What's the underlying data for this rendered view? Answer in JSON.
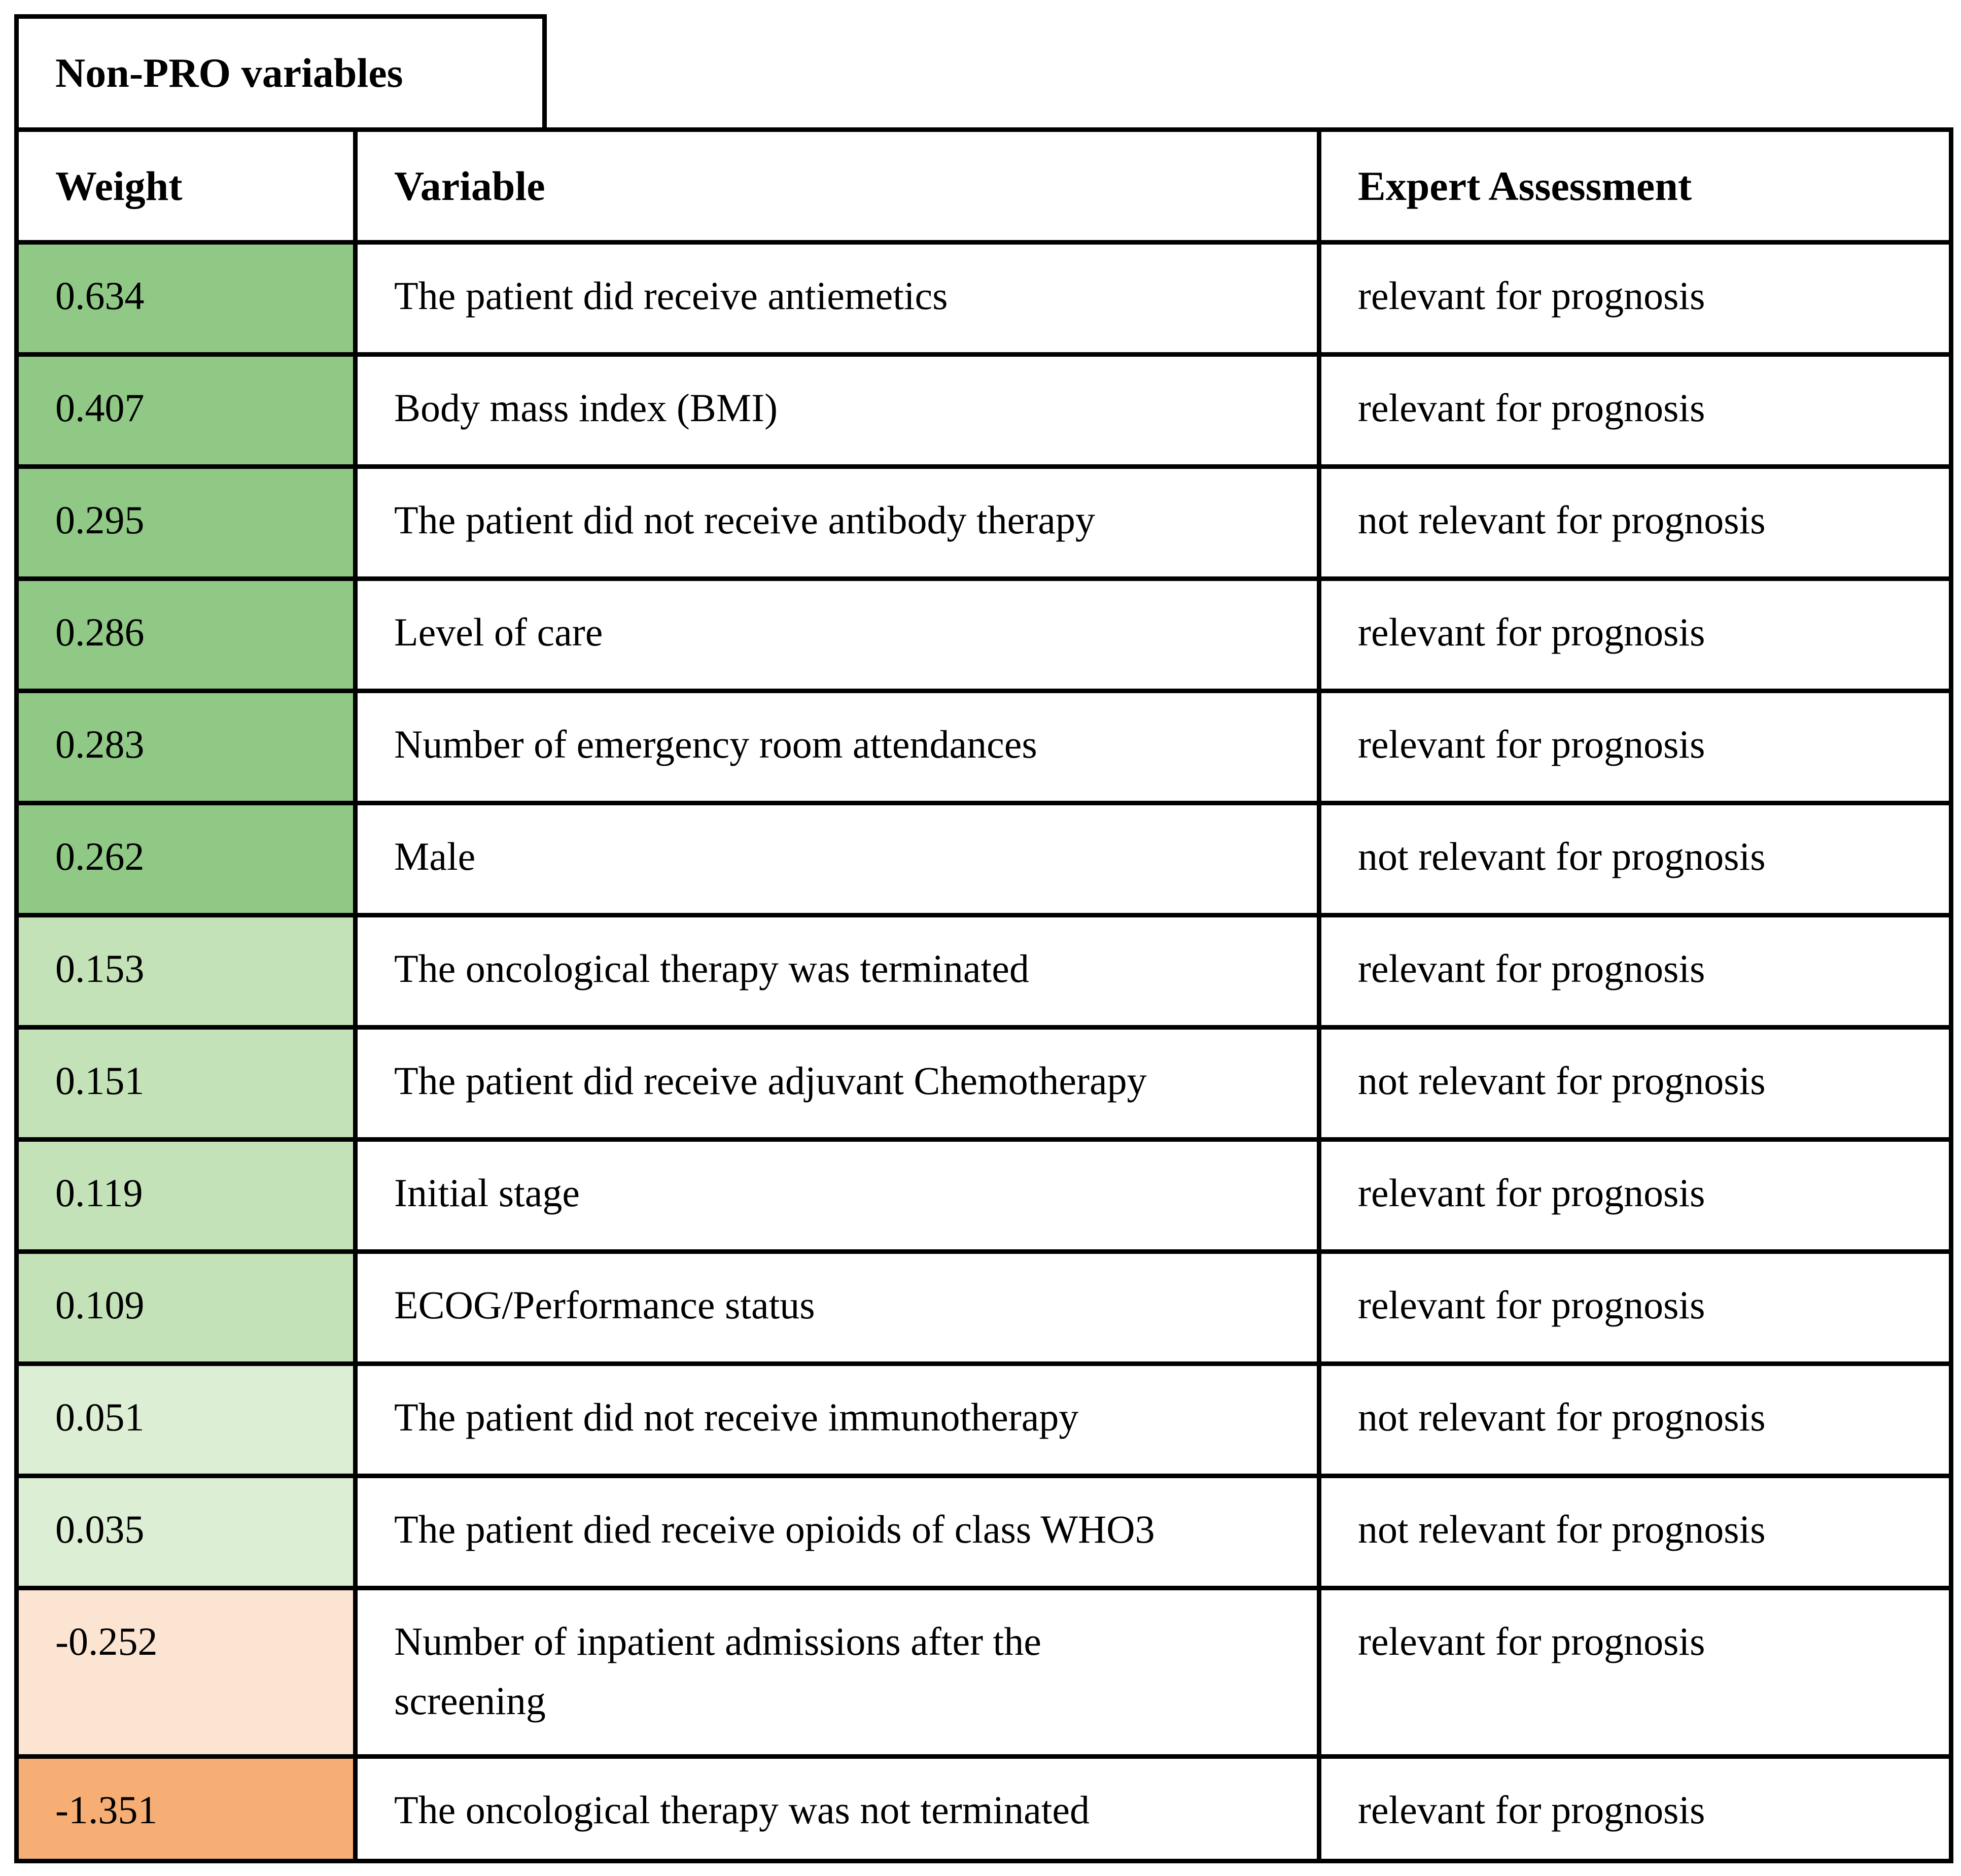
{
  "title": "Non-PRO variables",
  "columns": {
    "weight": "Weight",
    "variable": "Variable",
    "assessment": "Expert Assessment"
  },
  "colors": {
    "border": "#000000",
    "background": "#ffffff",
    "green_strong": "#8fc985",
    "green_medium": "#c3e2b8",
    "green_pale": "#dceed3",
    "orange_pale": "#fce4d3",
    "orange_strong": "#f7ae74"
  },
  "rows": [
    {
      "weight": "0.634",
      "variable": "The patient did receive antiemetics",
      "assessment": "relevant for prognosis",
      "weight_color": "#8fc985"
    },
    {
      "weight": "0.407",
      "variable": "Body mass index (BMI)",
      "assessment": "relevant for prognosis",
      "weight_color": "#8fc985"
    },
    {
      "weight": "0.295",
      "variable": "The patient did not receive antibody therapy",
      "assessment": "not relevant for prognosis",
      "weight_color": "#8fc985"
    },
    {
      "weight": "0.286",
      "variable": "Level of care",
      "assessment": "relevant for prognosis",
      "weight_color": "#8fc985"
    },
    {
      "weight": "0.283",
      "variable": "Number of emergency room attendances",
      "assessment": "relevant for prognosis",
      "weight_color": "#8fc985"
    },
    {
      "weight": "0.262",
      "variable": "Male",
      "assessment": "not relevant for prognosis",
      "weight_color": "#8fc985"
    },
    {
      "weight": "0.153",
      "variable": "The oncological therapy was terminated",
      "assessment": "relevant for prognosis",
      "weight_color": "#c3e2b8"
    },
    {
      "weight": "0.151",
      "variable": "The patient did receive adjuvant Chemotherapy",
      "assessment": "not relevant for prognosis",
      "weight_color": "#c3e2b8"
    },
    {
      "weight": "0.119",
      "variable": "Initial stage",
      "assessment": "relevant for prognosis",
      "weight_color": "#c3e2b8"
    },
    {
      "weight": "0.109",
      "variable": "ECOG/Performance status",
      "assessment": "relevant for prognosis",
      "weight_color": "#c3e2b8"
    },
    {
      "weight": "0.051",
      "variable": "The patient did not receive immunotherapy",
      "assessment": "not relevant for prognosis",
      "weight_color": "#dceed3"
    },
    {
      "weight": "0.035",
      "variable": "The patient died receive opioids of class WHO3",
      "assessment": "not relevant for prognosis",
      "weight_color": "#dceed3"
    },
    {
      "weight": "-0.252",
      "variable": "Number of inpatient admissions after the\nscreening",
      "assessment": "relevant for prognosis",
      "weight_color": "#fce4d3"
    },
    {
      "weight": "-1.351",
      "variable": "The oncological therapy was not terminated",
      "assessment": "relevant for prognosis",
      "weight_color": "#f7ae74"
    }
  ]
}
